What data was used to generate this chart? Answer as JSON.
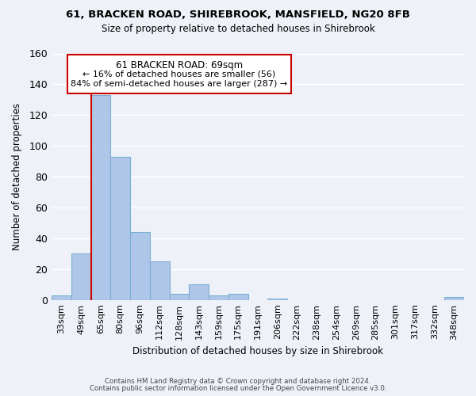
{
  "title1": "61, BRACKEN ROAD, SHIREBROOK, MANSFIELD, NG20 8FB",
  "title2": "Size of property relative to detached houses in Shirebrook",
  "xlabel": "Distribution of detached houses by size in Shirebrook",
  "ylabel": "Number of detached properties",
  "bin_labels": [
    "33sqm",
    "49sqm",
    "65sqm",
    "80sqm",
    "96sqm",
    "112sqm",
    "128sqm",
    "143sqm",
    "159sqm",
    "175sqm",
    "191sqm",
    "206sqm",
    "222sqm",
    "238sqm",
    "254sqm",
    "269sqm",
    "285sqm",
    "301sqm",
    "317sqm",
    "332sqm",
    "348sqm"
  ],
  "bar_heights": [
    3,
    30,
    133,
    93,
    44,
    25,
    4,
    10,
    3,
    4,
    0,
    1,
    0,
    0,
    0,
    0,
    0,
    0,
    0,
    0,
    2
  ],
  "bar_color": "#aec6e8",
  "bar_edge_color": "#7aafd4",
  "vline_color": "#cc0000",
  "annotation_box_color": "#ffffff",
  "annotation_box_edge_color": "#cc0000",
  "annotation_title": "61 BRACKEN ROAD: 69sqm",
  "annotation_line1": "← 16% of detached houses are smaller (56)",
  "annotation_line2": "84% of semi-detached houses are larger (287) →",
  "ylim": [
    0,
    160
  ],
  "yticks": [
    0,
    20,
    40,
    60,
    80,
    100,
    120,
    140,
    160
  ],
  "footnote1": "Contains HM Land Registry data © Crown copyright and database right 2024.",
  "footnote2": "Contains public sector information licensed under the Open Government Licence v3.0.",
  "background_color": "#eef2f8",
  "grid_color": "#c8d4e8"
}
